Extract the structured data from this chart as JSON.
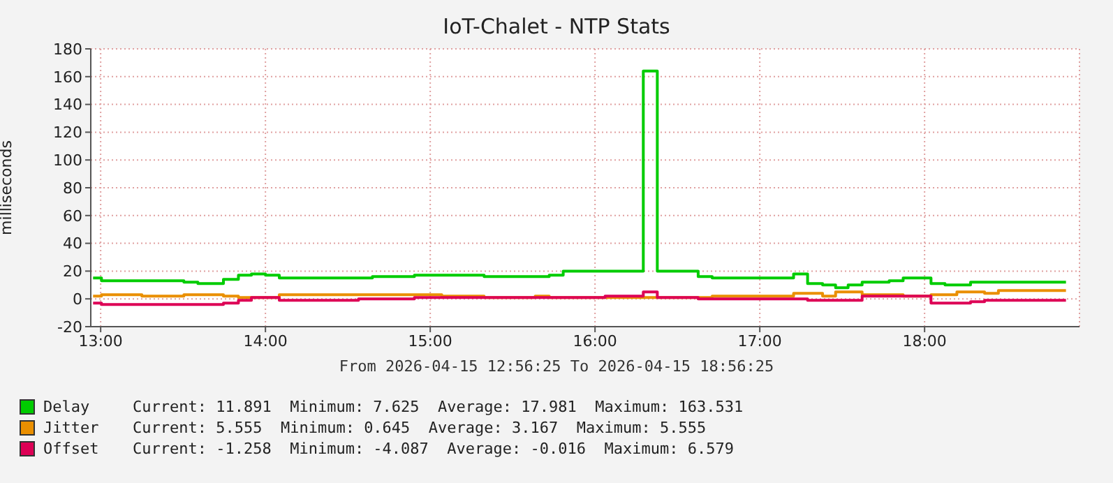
{
  "chart_data": {
    "type": "step",
    "title": "IoT-Chalet - NTP Stats",
    "ylabel": "milliseconds",
    "xlim": [
      12.94,
      18.94
    ],
    "xticks": [
      {
        "value": 13,
        "label": "13:00"
      },
      {
        "value": 14,
        "label": "14:00"
      },
      {
        "value": 15,
        "label": "15:00"
      },
      {
        "value": 16,
        "label": "16:00"
      },
      {
        "value": 17,
        "label": "17:00"
      },
      {
        "value": 18,
        "label": "18:00"
      }
    ],
    "ylim": [
      -20,
      180
    ],
    "yticks": [
      -20,
      0,
      20,
      40,
      60,
      80,
      100,
      120,
      140,
      160,
      180
    ],
    "grid": true,
    "legend": "bottom",
    "series": [
      {
        "name": "Delay",
        "color": "#00cc00",
        "x": [
          12.954,
          13.005,
          13.505,
          13.59,
          13.745,
          13.836,
          13.915,
          14.0,
          14.084,
          14.649,
          14.904,
          15.327,
          15.722,
          15.807,
          16.293,
          16.378,
          16.626,
          16.711,
          17.205,
          17.29,
          17.381,
          17.46,
          17.536,
          17.621,
          17.785,
          17.87,
          18.039,
          18.124,
          18.279,
          18.364,
          18.858
        ],
        "values": [
          15,
          13,
          12,
          11,
          14,
          17,
          18,
          17,
          15,
          16,
          17,
          16,
          17,
          20,
          164,
          20,
          16,
          15,
          18,
          11,
          10,
          8,
          10,
          12,
          13,
          15,
          11,
          10,
          12,
          12,
          12
        ]
      },
      {
        "name": "Jitter",
        "color": "#ea8f00",
        "x": [
          12.954,
          13.005,
          13.25,
          13.505,
          13.745,
          13.836,
          14.084,
          15.07,
          15.327,
          15.637,
          15.722,
          16.293,
          16.378,
          16.626,
          16.711,
          17.205,
          17.381,
          17.46,
          17.621,
          17.87,
          18.039,
          18.196,
          18.364,
          18.448,
          18.858
        ],
        "values": [
          2,
          3,
          2,
          3,
          2,
          1,
          3,
          2,
          1,
          2,
          1,
          1,
          1,
          1,
          2,
          4,
          2,
          5,
          3,
          2,
          3,
          5,
          4,
          6,
          6
        ]
      },
      {
        "name": "Offset",
        "color": "#dd0055",
        "x": [
          12.954,
          13.005,
          13.745,
          13.836,
          13.915,
          14.084,
          14.565,
          14.904,
          15.722,
          16.061,
          16.293,
          16.378,
          16.626,
          17.29,
          17.621,
          18.039,
          18.279,
          18.364,
          18.858
        ],
        "values": [
          -3,
          -4,
          -3,
          -1,
          1,
          -1,
          0,
          1,
          1,
          2,
          5,
          1,
          0,
          -1,
          2,
          -3,
          -2,
          -1,
          -1
        ]
      }
    ],
    "annotations": [
      "From 2026-04-15 12:56:25 To 2026-04-15 18:56:25",
      "Current: 11.891  Minimum: 7.625  Average: 17.981  Maximum: 163.531",
      "Current: 5.555  Minimum: 0.645  Average: 3.167  Maximum: 5.555",
      "Current: -1.258  Minimum: -4.087  Average: -0.016  Maximum: 6.579"
    ]
  }
}
